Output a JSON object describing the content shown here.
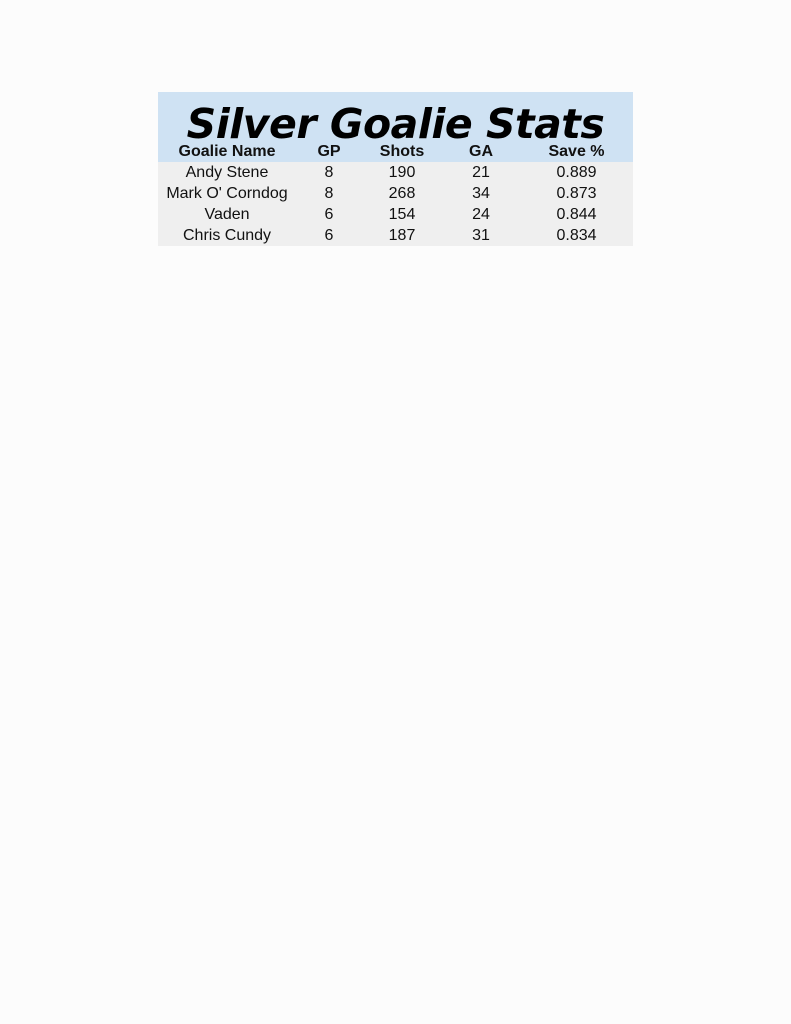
{
  "title": "Silver Goalie Stats",
  "colors": {
    "header_bg": "#cfe2f3",
    "body_bg": "#efefef"
  },
  "columns": [
    "Goalie Name",
    "GP",
    "Shots",
    "GA",
    "Save %"
  ],
  "rows": [
    [
      "Andy Stene",
      "8",
      "190",
      "21",
      "0.889"
    ],
    [
      "Mark O' Corndog",
      "8",
      "268",
      "34",
      "0.873"
    ],
    [
      "Vaden",
      "6",
      "154",
      "24",
      "0.844"
    ],
    [
      "Chris Cundy",
      "6",
      "187",
      "31",
      "0.834"
    ]
  ]
}
